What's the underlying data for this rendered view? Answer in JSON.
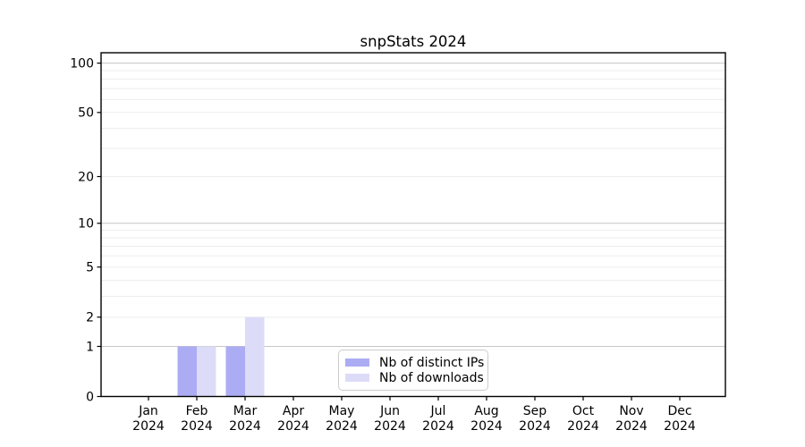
{
  "chart_data": {
    "type": "bar",
    "title": "snpStats 2024",
    "categories": [
      "Jan",
      "Feb",
      "Mar",
      "Apr",
      "May",
      "Jun",
      "Jul",
      "Aug",
      "Sep",
      "Oct",
      "Nov",
      "Dec"
    ],
    "category_year": "2024",
    "series": [
      {
        "name": "Nb of distinct IPs",
        "color": "#acacf4",
        "values": [
          0,
          1,
          1,
          0,
          0,
          0,
          0,
          0,
          0,
          0,
          0,
          0
        ]
      },
      {
        "name": "Nb of downloads",
        "color": "#dcdcf8",
        "values": [
          0,
          1,
          2,
          0,
          0,
          0,
          0,
          0,
          0,
          0,
          0,
          0
        ]
      }
    ],
    "yscale": "log1p",
    "ylim": [
      0,
      100
    ],
    "ytick_labels": [
      0,
      1,
      2,
      5,
      10,
      20,
      50,
      100
    ],
    "gridlines": {
      "major": [
        1,
        10,
        100
      ],
      "minor": [
        2,
        3,
        4,
        5,
        6,
        7,
        8,
        9,
        20,
        30,
        40,
        50,
        60,
        70,
        80,
        90
      ]
    },
    "legend_position": "bottom-center",
    "grid": "on"
  }
}
